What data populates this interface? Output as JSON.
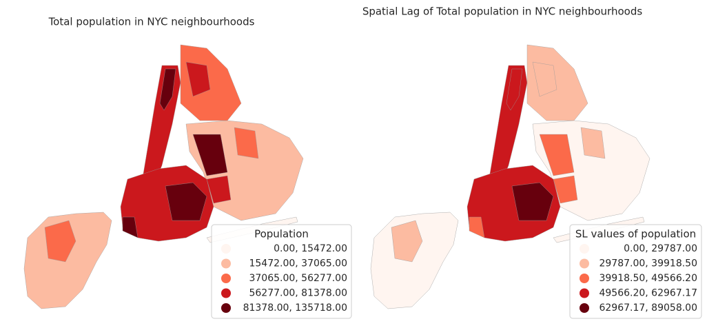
{
  "maps": [
    {
      "title": "Total population in NYC neighbourhoods",
      "legend": {
        "title": "Population",
        "entries": [
          {
            "label": "0.00,  15472.00",
            "color": "#fff5f0"
          },
          {
            "label": "15472.00,  37065.00",
            "color": "#fcbba1"
          },
          {
            "label": "37065.00,  56277.00",
            "color": "#fb6a4a"
          },
          {
            "label": "56277.00,  81378.00",
            "color": "#cb181d"
          },
          {
            "label": "81378.00, 135718.00",
            "color": "#67000d"
          }
        ]
      }
    },
    {
      "title": "Spatial Lag of Total population in NYC neighbourhoods",
      "legend": {
        "title": "SL values of population",
        "entries": [
          {
            "label": "0.00, 29787.00",
            "color": "#fff5f0"
          },
          {
            "label": "29787.00, 39918.50",
            "color": "#fcbba1"
          },
          {
            "label": "39918.50, 49566.20",
            "color": "#fb6a4a"
          },
          {
            "label": "49566.20, 62967.17",
            "color": "#cb181d"
          },
          {
            "label": "62967.17, 89058.00",
            "color": "#67000d"
          }
        ]
      }
    }
  ]
}
